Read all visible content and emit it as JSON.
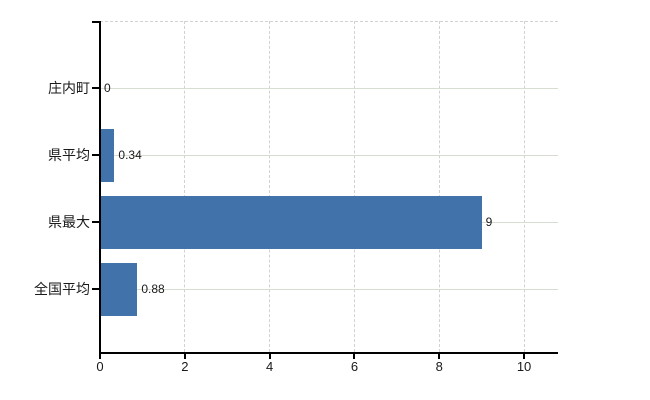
{
  "chart_data": {
    "type": "bar",
    "orientation": "horizontal",
    "title": "",
    "xlabel": "",
    "ylabel": "",
    "categories": [
      "庄内町",
      "県平均",
      "県最大",
      "全国平均"
    ],
    "values": [
      0,
      0.34,
      9,
      0.88
    ],
    "value_labels": [
      "0",
      "0.34",
      "9",
      "0.88"
    ],
    "x_ticks": [
      0,
      2,
      4,
      6,
      8,
      10
    ],
    "xlim": [
      0,
      10.8
    ],
    "grid": true,
    "legend": false,
    "colors": {
      "bar": "#4272aa",
      "axis": "#000000",
      "gridline_horizontal": "#d8ddd2",
      "gridline_vertical": "#d4d0d6",
      "text": "#1a1a1a",
      "background": "#ffffff"
    }
  }
}
